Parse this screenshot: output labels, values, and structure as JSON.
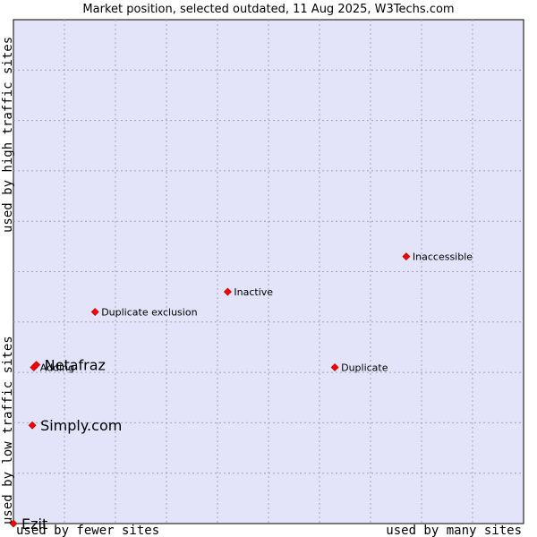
{
  "chart_data": {
    "type": "scatter",
    "title": "Market position, selected outdated, 11 Aug 2025, W3Techs.com",
    "xlabel_left": "used by fewer sites",
    "xlabel_right": "used by many sites",
    "ylabel_bottom": "used by low traffic sites",
    "ylabel_top": "used by high traffic sites",
    "grid": true,
    "background_color": "#e3e4f9",
    "point_color": "#ff0000",
    "points": [
      {
        "label": "Inaccessible",
        "x": 0.77,
        "y": 0.53,
        "size": "small"
      },
      {
        "label": "Inactive",
        "x": 0.42,
        "y": 0.46,
        "size": "small"
      },
      {
        "label": "Duplicate exclusion",
        "x": 0.16,
        "y": 0.42,
        "size": "small"
      },
      {
        "label": "Duplicate",
        "x": 0.63,
        "y": 0.31,
        "size": "small"
      },
      {
        "label": "Adding",
        "x": 0.04,
        "y": 0.31,
        "size": "small"
      },
      {
        "label": "Netafraz",
        "x": 0.045,
        "y": 0.315,
        "size": "big"
      },
      {
        "label": "Simply.com",
        "x": 0.037,
        "y": 0.195,
        "size": "big"
      },
      {
        "label": "Ezit",
        "x": 0.0,
        "y": 0.0,
        "size": "big"
      }
    ]
  }
}
